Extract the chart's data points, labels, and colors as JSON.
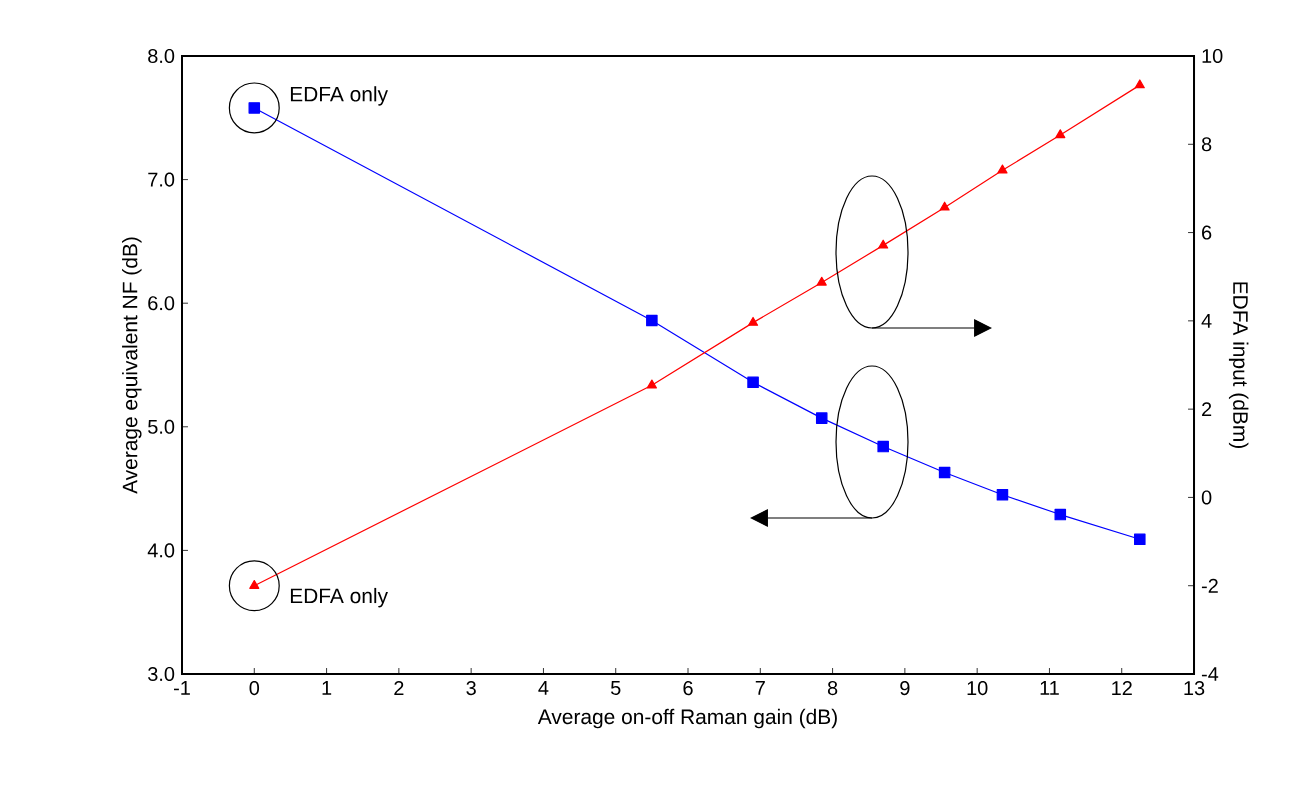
{
  "chart_data": {
    "type": "line",
    "xlabel": "Average on-off Raman gain (dB)",
    "ylabel": "Average equivalent NF (dB)",
    "y2label": "EDFA input (dBm)",
    "series": [
      {
        "color": "#0000ff",
        "marker": "square",
        "x": [
          0,
          5.5,
          6.9,
          7.85,
          8.7,
          9.55,
          10.35,
          11.15,
          12.25
        ],
        "values": [
          7.58,
          5.86,
          5.36,
          5.07,
          4.84,
          4.63,
          4.45,
          4.29,
          4.09
        ]
      },
      {
        "color": "#ff0000",
        "marker": "triangle",
        "axis": "y2",
        "x": [
          0,
          5.5,
          6.9,
          7.85,
          8.7,
          9.55,
          10.35,
          11.15,
          12.25
        ],
        "values": [
          -2.0,
          2.54,
          3.96,
          4.87,
          5.71,
          6.57,
          7.41,
          8.21,
          9.34
        ]
      }
    ],
    "xlim": [
      -1,
      13
    ],
    "xticks": [
      -1,
      0,
      1,
      2,
      3,
      4,
      5,
      6,
      7,
      8,
      9,
      10,
      11,
      12,
      13
    ],
    "ylim": [
      3,
      8
    ],
    "yticks": [
      {
        "value": 3,
        "label": "3.0"
      },
      {
        "value": 4,
        "label": "4.0"
      },
      {
        "value": 5,
        "label": "5.0"
      },
      {
        "value": 6,
        "label": "6.0"
      },
      {
        "value": 7,
        "label": "7.0"
      },
      {
        "value": 8,
        "label": "8.0"
      }
    ],
    "y2lim": [
      -4,
      10
    ],
    "y2ticks": [
      -4,
      -2,
      0,
      2,
      4,
      6,
      8,
      10
    ],
    "annotations": [
      "EDFA only",
      "EDFA only"
    ],
    "grid": false
  }
}
